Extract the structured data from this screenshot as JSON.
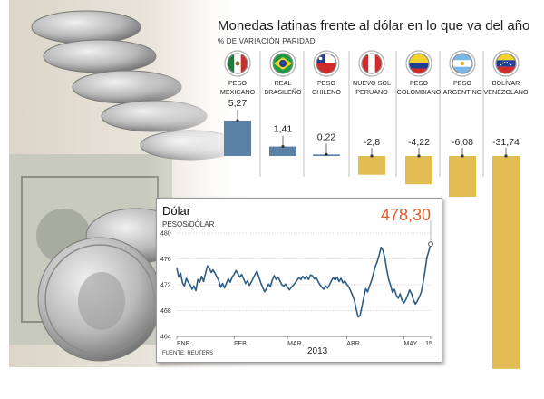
{
  "title": "Monedas latinas frente al dólar en lo que va del año",
  "subtitle": "% DE VARIACIÓN PARIDAD",
  "colors": {
    "positive": "#5b82a6",
    "negative": "#e2be52",
    "line": "#2d5d86",
    "last_value": "#e05a2b",
    "separator": "#9a9a9a"
  },
  "chart_data": [
    {
      "type": "bar",
      "title": "Monedas latinas frente al dólar en lo que va del año",
      "subtitle": "% DE VARIACIÓN PARIDAD",
      "categories": [
        [
          "PESO",
          "MEXICANO"
        ],
        [
          "REAL",
          "BRASILEÑO"
        ],
        [
          "PESO",
          "CHILENO"
        ],
        [
          "NUEVO SOL",
          "PERUANO"
        ],
        [
          "PESO",
          "COLOMBIANO"
        ],
        [
          "PESO",
          "ARGENTINO"
        ],
        [
          "BOLÍVAR",
          "VENEZOLANO"
        ]
      ],
      "flag_icons": [
        "mexico-flag-icon",
        "brazil-flag-icon",
        "chile-flag-icon",
        "peru-flag-icon",
        "colombia-flag-icon",
        "argentina-flag-icon",
        "venezuela-flag-icon"
      ],
      "values": [
        5.27,
        1.41,
        0.22,
        -2.8,
        -4.22,
        -6.08,
        -31.74
      ],
      "value_labels": [
        "5,27",
        "1,41",
        "0,22",
        "-2,8",
        "-4,22",
        "-6,08",
        "-31,74"
      ]
    },
    {
      "type": "line",
      "title": "Dólar",
      "ylabel": "PESOS/DÓLAR",
      "last_value_label": "478,30",
      "year_label": "2013",
      "source": "FUENTE: REUTERS",
      "ylim": [
        464,
        480
      ],
      "yticks": [
        464,
        468,
        472,
        476,
        480
      ],
      "ytick_labels": [
        "464",
        "468",
        "472",
        "476",
        "480"
      ],
      "xticks": [
        {
          "day": 2,
          "label": "ENE."
        },
        {
          "day": 32,
          "label": "FEB."
        },
        {
          "day": 60,
          "label": "MAR."
        },
        {
          "day": 91,
          "label": "ABR."
        },
        {
          "day": 121,
          "label": "MAY."
        },
        {
          "day": 135,
          "label": "15"
        }
      ],
      "series": [
        {
          "x": [
            2,
            3,
            4,
            5,
            6,
            7,
            8,
            9,
            10,
            11,
            12,
            13,
            14,
            15,
            16,
            17,
            18,
            19,
            20,
            21,
            22,
            23,
            24,
            25,
            26,
            27,
            28,
            29,
            30,
            31,
            32,
            33,
            34,
            35,
            36,
            37,
            38,
            39,
            40,
            41,
            42,
            43,
            44,
            45,
            46,
            47,
            48,
            49,
            50,
            51,
            52,
            53,
            54,
            55,
            56,
            57,
            58,
            59,
            60,
            61,
            62,
            63,
            64,
            65,
            66,
            67,
            68,
            69,
            70,
            71,
            72,
            73,
            74,
            75,
            76,
            77,
            78,
            79,
            80,
            81,
            82,
            83,
            84,
            85,
            86,
            87,
            88,
            89,
            90,
            91,
            92,
            93,
            94,
            95,
            96,
            97,
            98,
            99,
            100,
            101,
            102,
            103,
            104,
            105,
            106,
            107,
            108,
            109,
            110,
            111,
            112,
            113,
            114,
            115,
            116,
            117,
            118,
            119,
            120,
            121,
            122,
            123,
            124,
            125,
            126,
            127,
            128,
            129,
            130,
            131,
            132,
            133,
            134,
            135
          ],
          "y": [
            474.6,
            473.2,
            473.8,
            472.3,
            471.8,
            473.0,
            472.4,
            472.0,
            471.3,
            471.8,
            471.1,
            472.8,
            472.4,
            473.3,
            472.5,
            473.7,
            474.9,
            474.6,
            473.9,
            474.3,
            473.8,
            473.2,
            472.6,
            471.6,
            472.2,
            471.5,
            472.2,
            472.9,
            472.4,
            473.2,
            473.6,
            474.2,
            473.7,
            473.2,
            473.6,
            472.9,
            472.2,
            472.6,
            471.9,
            472.4,
            473.0,
            473.6,
            474.1,
            473.2,
            472.3,
            471.6,
            470.9,
            471.4,
            472.1,
            471.7,
            472.7,
            473.4,
            472.8,
            473.2,
            472.6,
            472.0,
            471.8,
            472.1,
            471.6,
            471.2,
            471.6,
            471.9,
            472.3,
            472.7,
            473.1,
            472.8,
            473.3,
            472.9,
            473.3,
            472.8,
            473.5,
            473.4,
            472.9,
            473.1,
            472.5,
            472.0,
            471.6,
            471.3,
            471.8,
            471.5,
            472.0,
            472.6,
            473.1,
            472.7,
            473.2,
            472.5,
            473.0,
            472.3,
            472.6,
            472.1,
            471.7,
            471.1,
            470.4,
            469.6,
            468.2,
            467.0,
            467.2,
            468.6,
            470.1,
            471.4,
            470.9,
            471.8,
            472.6,
            473.7,
            474.8,
            475.6,
            476.6,
            477.8,
            477.3,
            476.1,
            474.3,
            472.8,
            471.9,
            470.8,
            471.3,
            470.4,
            469.9,
            470.6,
            469.6,
            469.2,
            469.7,
            470.4,
            471.2,
            470.6,
            469.6,
            469.0,
            469.5,
            470.1,
            470.8,
            472.3,
            474.1,
            476.2,
            477.2,
            478.3
          ]
        }
      ]
    }
  ]
}
